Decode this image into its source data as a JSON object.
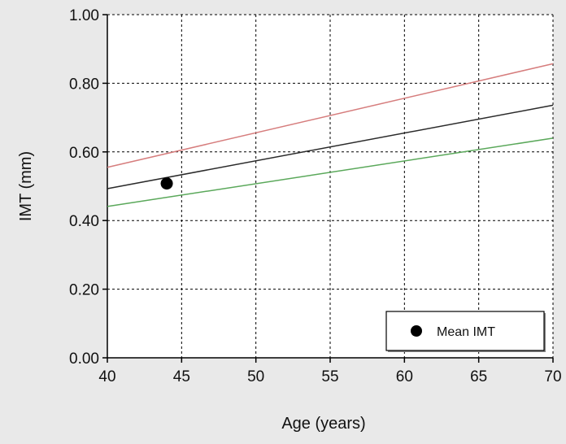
{
  "chart_data": {
    "type": "line",
    "xlabel": "Age (years)",
    "ylabel": "IMT (mm)",
    "xlim": [
      40,
      70
    ],
    "ylim": [
      0,
      1
    ],
    "x_ticks": [
      40,
      45,
      50,
      55,
      60,
      65,
      70
    ],
    "x_tick_labels": [
      "40",
      "45",
      "50",
      "55",
      "60",
      "65",
      "70"
    ],
    "y_ticks": [
      0,
      0.2,
      0.4,
      0.6,
      0.8,
      1.0
    ],
    "y_tick_labels": [
      "0.00",
      "0.20",
      "0.40",
      "0.60",
      "0.80",
      "1.00"
    ],
    "grid": true,
    "legend_position": "bottom-right",
    "series": [
      {
        "color": "#d67d7d",
        "x": [
          40,
          70
        ],
        "y": [
          0.555,
          0.857
        ]
      },
      {
        "color": "#2a2a2a",
        "x": [
          40,
          70
        ],
        "y": [
          0.493,
          0.736
        ]
      },
      {
        "color": "#5aa85a",
        "x": [
          40,
          70
        ],
        "y": [
          0.441,
          0.64
        ]
      }
    ],
    "points": [
      {
        "name": "Mean IMT",
        "x": 44,
        "y": 0.508,
        "color": "#000000"
      }
    ],
    "legend": [
      {
        "label": "Mean IMT",
        "marker": "filled-circle",
        "color": "#000000"
      }
    ]
  }
}
